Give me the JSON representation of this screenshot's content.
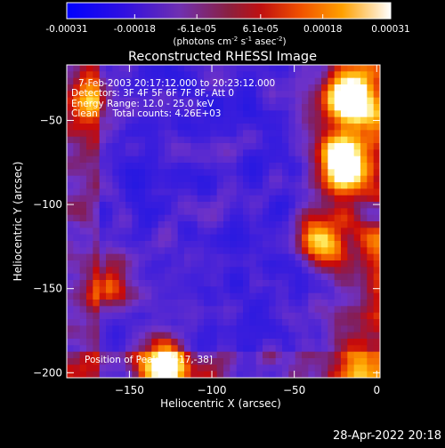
{
  "chart_data": {
    "type": "heatmap",
    "title": "Reconstructed RHESSI Image",
    "xlabel": "Heliocentric X (arcsec)",
    "ylabel": "Heliocentric Y (arcsec)",
    "xlim": [
      -188,
      2
    ],
    "ylim": [
      -203,
      -17
    ],
    "x_ticks": [
      -150,
      -100,
      -50,
      0
    ],
    "y_ticks": [
      -50,
      -100,
      -150,
      -200
    ],
    "colorbar": {
      "tick_labels": [
        "-0.00031",
        "-0.00018",
        "-6.1e-05",
        "6.1e-05",
        "0.00018",
        "0.00031"
      ],
      "tick_values": [
        -0.00031,
        -0.00018,
        -6.1e-05,
        6.1e-05,
        0.00018,
        0.00031
      ],
      "range": [
        -0.00031,
        0.00031
      ],
      "unit_base": "(photons cm",
      "unit_exp1": "-2",
      "unit_mid": " s",
      "unit_exp2": "-1",
      "unit_mid2": " asec",
      "unit_exp3": "-2",
      "unit_end": ")",
      "colors": [
        "#0000ff",
        "#6020d0",
        "#9040a0",
        "#b02020",
        "#e04000",
        "#ff8000",
        "#ffc000",
        "#ffffff"
      ]
    },
    "annotations": {
      "line1": "7-Feb-2003 20:17:12.000 to 20:23:12.000",
      "line2": "Detectors: 3F 4F 5F 6F 7F 8F, Att 0",
      "line3": "Energy Range: 12.0 - 25.0 keV",
      "line4": "Clean     Total counts: 4.26E+03",
      "peak": "Position of Peak = [-17,-38]"
    },
    "sources": [
      {
        "x": -20,
        "y": -75,
        "peak": 1.0
      },
      {
        "x": -17,
        "y": -38,
        "peak": 1.0
      },
      {
        "x": -35,
        "y": -120,
        "peak": 0.8
      },
      {
        "x": -130,
        "y": -195,
        "peak": 0.9
      },
      {
        "x": -175,
        "y": -40,
        "peak": 0.5
      },
      {
        "x": -160,
        "y": -150,
        "peak": 0.5
      }
    ]
  },
  "footer": {
    "timestamp": "28-Apr-2022 20:18"
  }
}
